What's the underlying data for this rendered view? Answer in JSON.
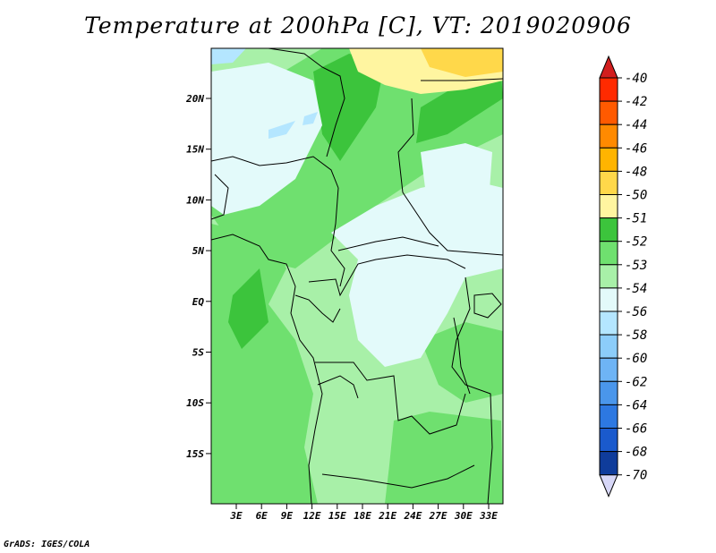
{
  "title": "Temperature at 200hPa [C], VT: 2019020906",
  "footer": "GrADS: IGES/COLA",
  "lat_labels": [
    "20N",
    "15N",
    "10N",
    "5N",
    "EQ",
    "5S",
    "10S",
    "15S"
  ],
  "lon_labels": [
    "3E",
    "6E",
    "9E",
    "12E",
    "15E",
    "18E",
    "21E",
    "24E",
    "27E",
    "30E",
    "33E"
  ],
  "colorbar": {
    "labels": [
      "-40",
      "-42",
      "-44",
      "-46",
      "-48",
      "-50",
      "-51",
      "-52",
      "-53",
      "-54",
      "-56",
      "-58",
      "-60",
      "-62",
      "-64",
      "-66",
      "-68",
      "-70"
    ],
    "colors": [
      "#ff2a00",
      "#ff5a00",
      "#ff8a00",
      "#ffb400",
      "#ffd84a",
      "#fff5a0",
      "#3cc43c",
      "#6fe06f",
      "#a8f0a8",
      "#e3fafa",
      "#b4e6ff",
      "#8ccdfa",
      "#6eb4f5",
      "#4a96eb",
      "#2d78e1",
      "#1a5acd",
      "#0f3c9b",
      "#0a1e6e"
    ],
    "top_arrow_color": "#d21e1e",
    "bottom_arrow_color": "#d7d7f7"
  },
  "field_colors": {
    "dark_green": "#3cc43c",
    "green": "#6fe06f",
    "light_green": "#a8f0a8",
    "pale_cyan": "#e3fafa",
    "light_blue": "#b4e6ff",
    "pale_yellow": "#fff5a0",
    "yellow": "#ffd84a"
  }
}
